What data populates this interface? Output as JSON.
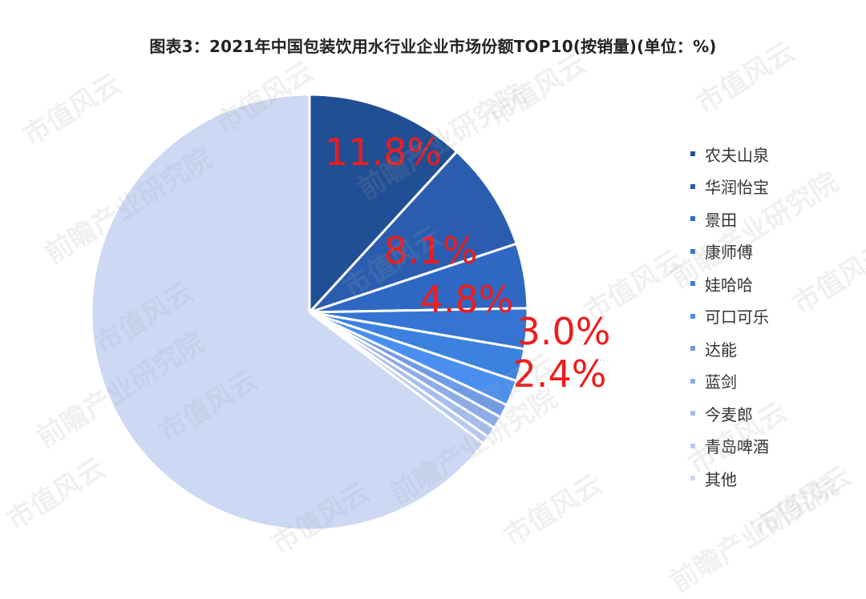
{
  "title": "图表3：2021年中国包装饮用水行业企业市场份额TOP10(按销量)(单位：%)",
  "chart_data": {
    "type": "pie",
    "start_angle_deg": 0,
    "direction": "clockwise",
    "slices": [
      {
        "name": "农夫山泉",
        "value": 11.8,
        "label": "11.8%",
        "color": "#214f95"
      },
      {
        "name": "华润怡宝",
        "value": 8.1,
        "label": "8.1%",
        "color": "#2a5db0"
      },
      {
        "name": "景田",
        "value": 4.8,
        "label": "4.8%",
        "color": "#2f68c2"
      },
      {
        "name": "康师傅",
        "value": 3.0,
        "label": "3.0%",
        "color": "#3574d2"
      },
      {
        "name": "娃哈哈",
        "value": 2.4,
        "label": "2.4%",
        "color": "#3c80e0"
      },
      {
        "name": "可口可乐",
        "value": 1.9,
        "label": "",
        "color": "#4a8ff0"
      },
      {
        "name": "达能",
        "value": 1.0,
        "label": "",
        "color": "#6f9be6"
      },
      {
        "name": "蓝剑",
        "value": 0.9,
        "label": "",
        "color": "#8eace8"
      },
      {
        "name": "今麦郎",
        "value": 0.8,
        "label": "",
        "color": "#a6bdee"
      },
      {
        "name": "青岛啤酒",
        "value": 0.6,
        "label": "",
        "color": "#b8c9f0"
      },
      {
        "name": "其他",
        "value": 64.7,
        "label": "",
        "color": "#cdd8f3"
      }
    ]
  },
  "watermarks": [
    "市值风云",
    "前瞻产业研究院"
  ]
}
